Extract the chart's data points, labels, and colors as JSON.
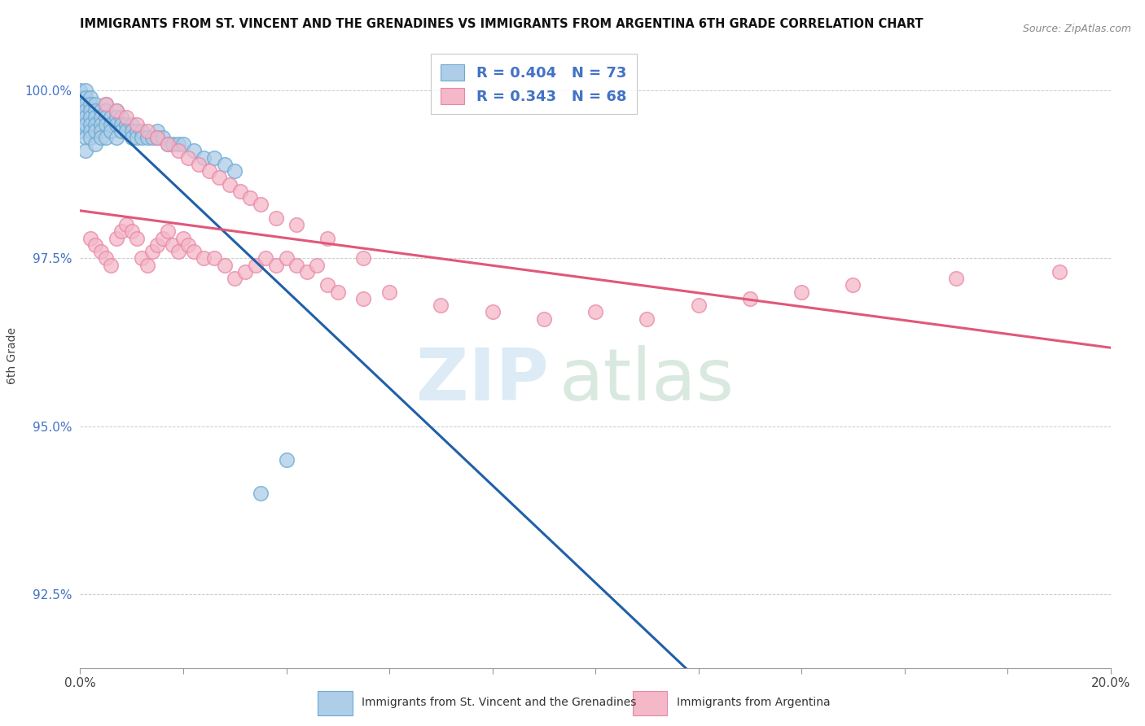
{
  "title": "IMMIGRANTS FROM ST. VINCENT AND THE GRENADINES VS IMMIGRANTS FROM ARGENTINA 6TH GRADE CORRELATION CHART",
  "source": "Source: ZipAtlas.com",
  "ylabel": "6th Grade",
  "xmin": 0.0,
  "xmax": 0.2,
  "ymin": 0.914,
  "ymax": 1.007,
  "yticks": [
    0.925,
    0.95,
    0.975,
    1.0
  ],
  "ytick_labels": [
    "92.5%",
    "95.0%",
    "97.5%",
    "100.0%"
  ],
  "xticks": [
    0.0,
    0.02,
    0.04,
    0.06,
    0.08,
    0.1,
    0.12,
    0.14,
    0.16,
    0.18,
    0.2
  ],
  "xtick_labels": [
    "0.0%",
    "",
    "",
    "",
    "",
    "",
    "",
    "",
    "",
    "",
    "20.0%"
  ],
  "blue_R": 0.404,
  "blue_N": 73,
  "pink_R": 0.343,
  "pink_N": 68,
  "blue_fill_color": "#aecde8",
  "blue_edge_color": "#6aabd2",
  "pink_fill_color": "#f4b8c8",
  "pink_edge_color": "#e888a8",
  "blue_line_color": "#2060a8",
  "pink_line_color": "#e05878",
  "legend_text_color": "#4472c4",
  "ytick_color": "#4472c4",
  "legend_label_blue": "Immigrants from St. Vincent and the Grenadines",
  "legend_label_pink": "Immigrants from Argentina",
  "blue_scatter_x": [
    0.0,
    0.0,
    0.0,
    0.0,
    0.0,
    0.0,
    0.0,
    0.001,
    0.001,
    0.001,
    0.001,
    0.001,
    0.001,
    0.001,
    0.001,
    0.002,
    0.002,
    0.002,
    0.002,
    0.002,
    0.002,
    0.002,
    0.003,
    0.003,
    0.003,
    0.003,
    0.003,
    0.003,
    0.004,
    0.004,
    0.004,
    0.004,
    0.004,
    0.005,
    0.005,
    0.005,
    0.005,
    0.005,
    0.006,
    0.006,
    0.006,
    0.007,
    0.007,
    0.007,
    0.007,
    0.008,
    0.008,
    0.008,
    0.009,
    0.009,
    0.01,
    0.01,
    0.01,
    0.011,
    0.011,
    0.012,
    0.012,
    0.013,
    0.014,
    0.015,
    0.015,
    0.016,
    0.017,
    0.018,
    0.019,
    0.02,
    0.022,
    0.024,
    0.026,
    0.028,
    0.03,
    0.035,
    0.04
  ],
  "blue_scatter_y": [
    1.0,
    0.999,
    0.998,
    0.997,
    0.996,
    0.995,
    0.994,
    1.0,
    0.999,
    0.998,
    0.997,
    0.996,
    0.995,
    0.993,
    0.991,
    0.999,
    0.998,
    0.997,
    0.996,
    0.995,
    0.994,
    0.993,
    0.998,
    0.997,
    0.996,
    0.995,
    0.994,
    0.992,
    0.997,
    0.996,
    0.995,
    0.994,
    0.993,
    0.998,
    0.997,
    0.996,
    0.995,
    0.993,
    0.996,
    0.995,
    0.994,
    0.997,
    0.996,
    0.995,
    0.993,
    0.996,
    0.995,
    0.994,
    0.995,
    0.994,
    0.995,
    0.994,
    0.993,
    0.994,
    0.993,
    0.994,
    0.993,
    0.993,
    0.993,
    0.994,
    0.993,
    0.993,
    0.992,
    0.992,
    0.992,
    0.992,
    0.991,
    0.99,
    0.99,
    0.989,
    0.988,
    0.94,
    0.945
  ],
  "pink_scatter_x": [
    0.002,
    0.003,
    0.004,
    0.005,
    0.006,
    0.007,
    0.008,
    0.009,
    0.01,
    0.011,
    0.012,
    0.013,
    0.014,
    0.015,
    0.016,
    0.017,
    0.018,
    0.019,
    0.02,
    0.021,
    0.022,
    0.024,
    0.026,
    0.028,
    0.03,
    0.032,
    0.034,
    0.036,
    0.038,
    0.04,
    0.042,
    0.044,
    0.046,
    0.048,
    0.05,
    0.055,
    0.06,
    0.07,
    0.08,
    0.09,
    0.1,
    0.11,
    0.12,
    0.13,
    0.14,
    0.15,
    0.17,
    0.19,
    0.005,
    0.007,
    0.009,
    0.011,
    0.013,
    0.015,
    0.017,
    0.019,
    0.021,
    0.023,
    0.025,
    0.027,
    0.029,
    0.031,
    0.033,
    0.035,
    0.038,
    0.042,
    0.048,
    0.055
  ],
  "pink_scatter_y": [
    0.978,
    0.977,
    0.976,
    0.975,
    0.974,
    0.978,
    0.979,
    0.98,
    0.979,
    0.978,
    0.975,
    0.974,
    0.976,
    0.977,
    0.978,
    0.979,
    0.977,
    0.976,
    0.978,
    0.977,
    0.976,
    0.975,
    0.975,
    0.974,
    0.972,
    0.973,
    0.974,
    0.975,
    0.974,
    0.975,
    0.974,
    0.973,
    0.974,
    0.971,
    0.97,
    0.969,
    0.97,
    0.968,
    0.967,
    0.966,
    0.967,
    0.966,
    0.968,
    0.969,
    0.97,
    0.971,
    0.972,
    0.973,
    0.998,
    0.997,
    0.996,
    0.995,
    0.994,
    0.993,
    0.992,
    0.991,
    0.99,
    0.989,
    0.988,
    0.987,
    0.986,
    0.985,
    0.984,
    0.983,
    0.981,
    0.98,
    0.978,
    0.975
  ]
}
